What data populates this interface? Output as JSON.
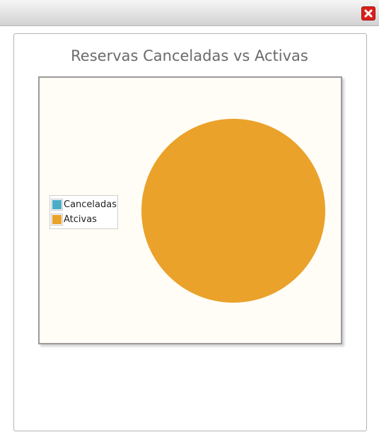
{
  "window": {
    "close_icon": "close-icon"
  },
  "colors": {
    "canceled": "#4bacc6",
    "active": "#eaa22b",
    "close_button": "#d9211c"
  },
  "chart_data": {
    "type": "pie",
    "title": "Reservas Canceladas vs Activas",
    "categories": [
      "Canceladas",
      "Atcivas"
    ],
    "values": [
      0,
      1
    ],
    "legend": "left",
    "legend_entries": [
      {
        "label": "Canceladas",
        "color": "#4bacc6"
      },
      {
        "label": "Atcivas",
        "color": "#eaa22b"
      }
    ]
  }
}
